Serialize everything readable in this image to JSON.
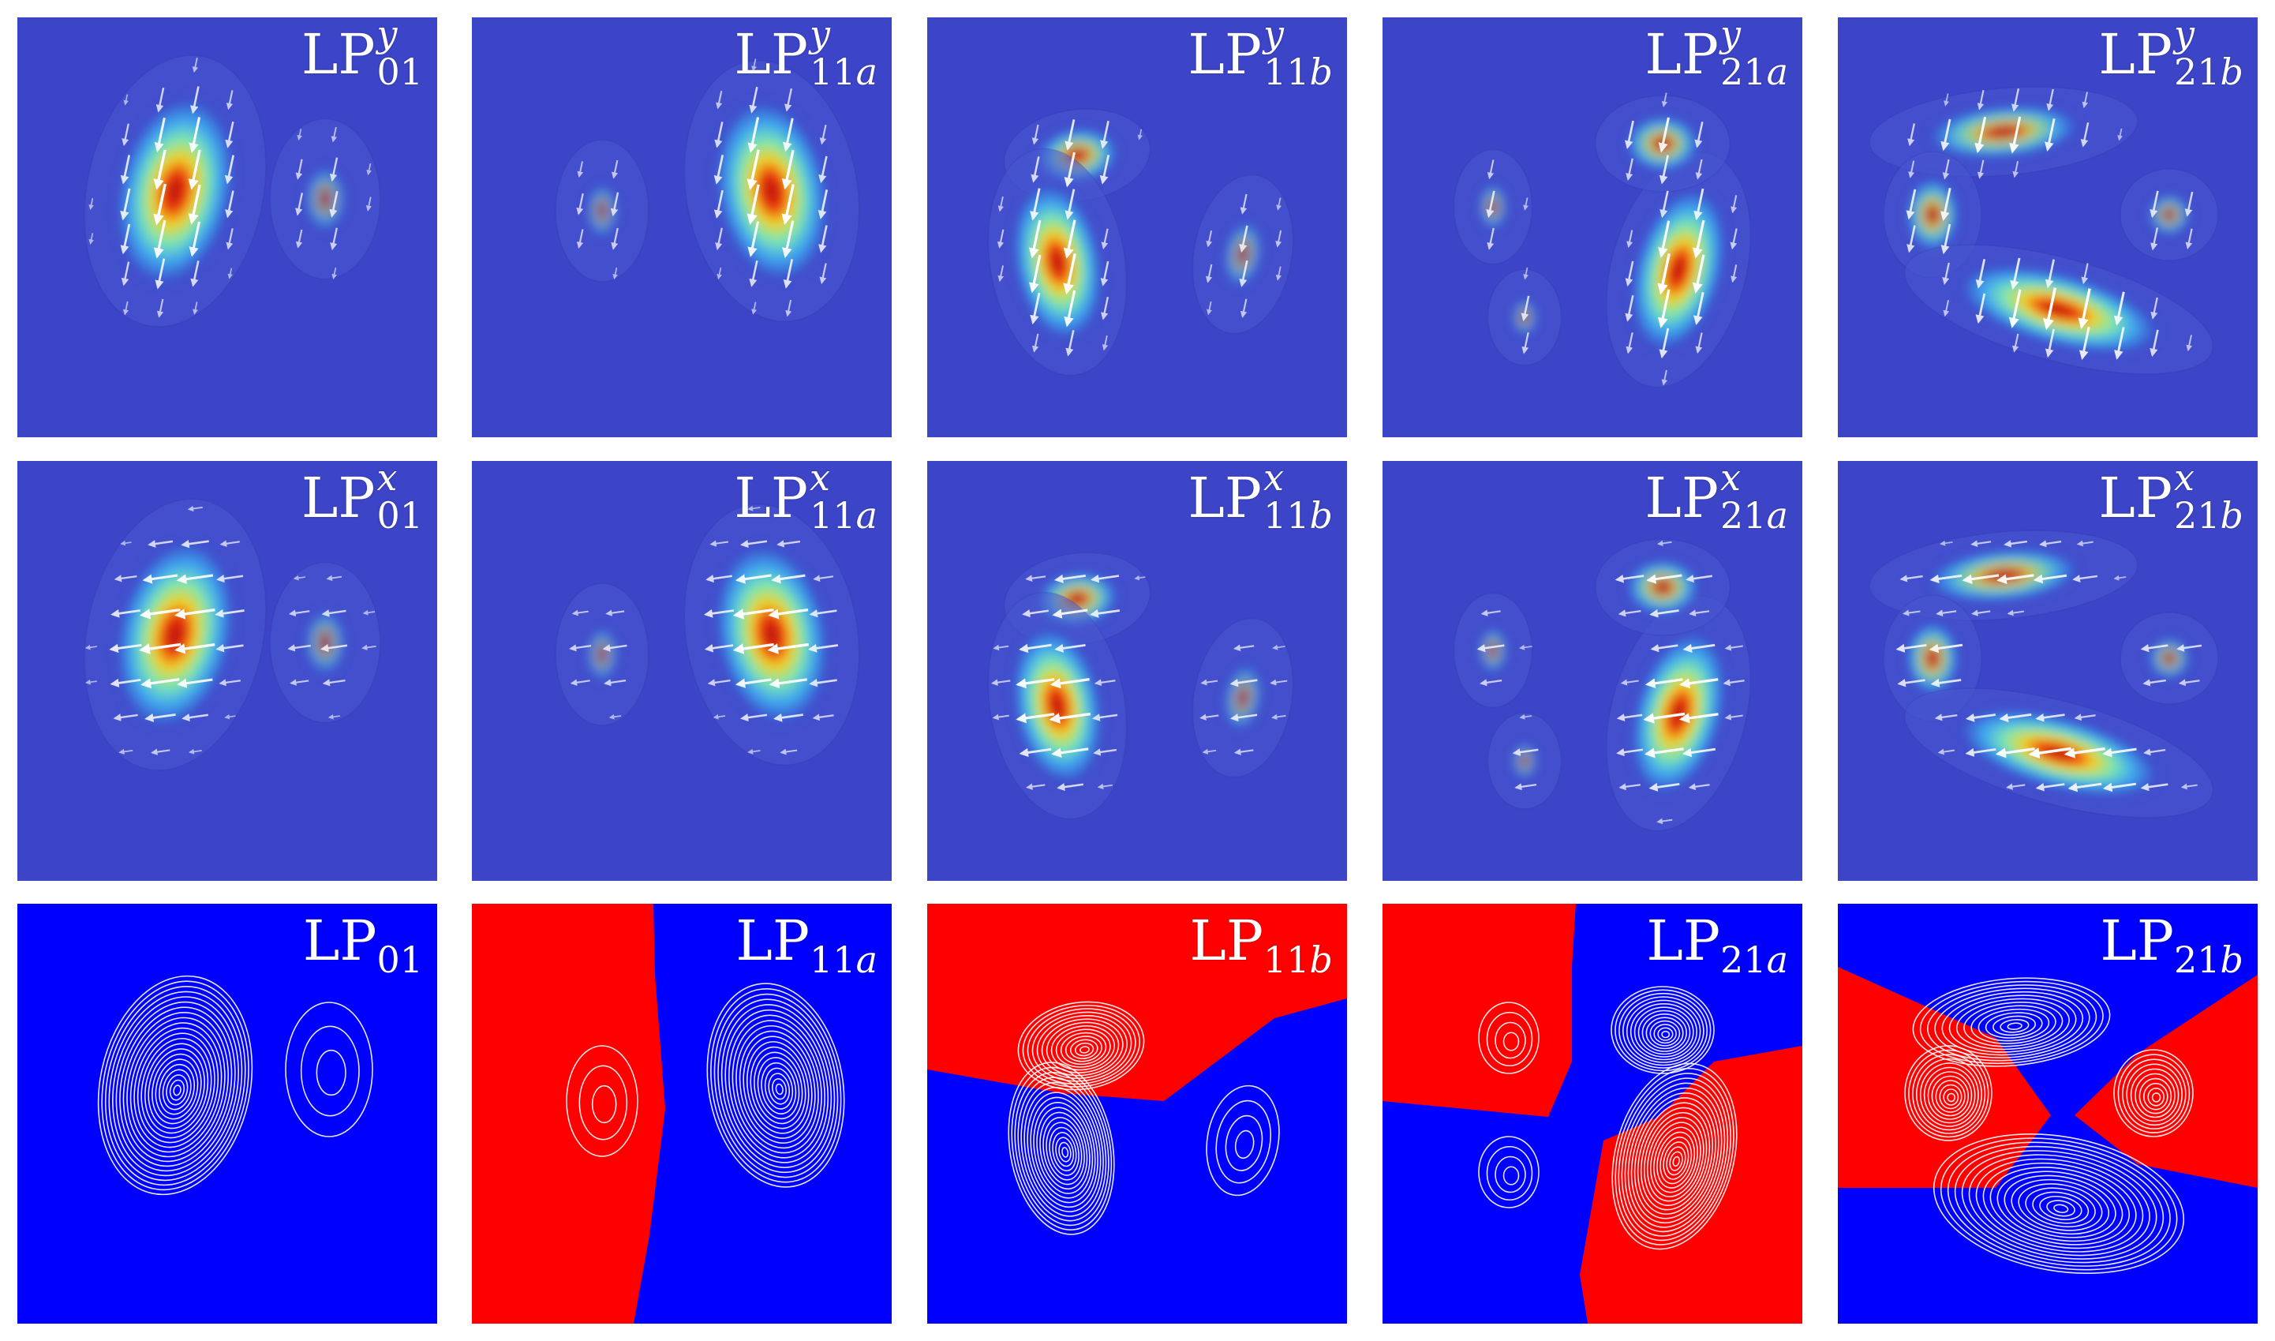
{
  "figure": {
    "rows": [
      {
        "kind": "intensity",
        "polarization": "y",
        "panels": [
          {
            "id": "r1c1",
            "base": "LP",
            "sub_num": "01",
            "sub_letter": "",
            "sup": "y"
          },
          {
            "id": "r1c2",
            "base": "LP",
            "sub_num": "11",
            "sub_letter": "a",
            "sup": "y"
          },
          {
            "id": "r1c3",
            "base": "LP",
            "sub_num": "11",
            "sub_letter": "b",
            "sup": "y"
          },
          {
            "id": "r1c4",
            "base": "LP",
            "sub_num": "21",
            "sub_letter": "a",
            "sup": "y"
          },
          {
            "id": "r1c5",
            "base": "LP",
            "sub_num": "21",
            "sub_letter": "b",
            "sup": "y"
          }
        ]
      },
      {
        "kind": "intensity",
        "polarization": "x",
        "panels": [
          {
            "id": "r2c1",
            "base": "LP",
            "sub_num": "01",
            "sub_letter": "",
            "sup": "x"
          },
          {
            "id": "r2c2",
            "base": "LP",
            "sub_num": "11",
            "sub_letter": "a",
            "sup": "x"
          },
          {
            "id": "r2c3",
            "base": "LP",
            "sub_num": "11",
            "sub_letter": "b",
            "sup": "x"
          },
          {
            "id": "r2c4",
            "base": "LP",
            "sub_num": "21",
            "sub_letter": "a",
            "sup": "x"
          },
          {
            "id": "r2c5",
            "base": "LP",
            "sub_num": "21",
            "sub_letter": "b",
            "sup": "x"
          }
        ]
      },
      {
        "kind": "phase",
        "polarization": "",
        "panels": [
          {
            "id": "r3c1",
            "base": "LP",
            "sub_num": "01",
            "sub_letter": "",
            "sup": ""
          },
          {
            "id": "r3c2",
            "base": "LP",
            "sub_num": "11",
            "sub_letter": "a",
            "sup": ""
          },
          {
            "id": "r3c3",
            "base": "LP",
            "sub_num": "11",
            "sub_letter": "b",
            "sup": ""
          },
          {
            "id": "r3c4",
            "base": "LP",
            "sub_num": "21",
            "sub_letter": "a",
            "sup": ""
          },
          {
            "id": "r3c5",
            "base": "LP",
            "sub_num": "21",
            "sub_letter": "b",
            "sup": ""
          }
        ]
      }
    ],
    "colors": {
      "field_background": "#3c44c8",
      "phase_positive": "#ff0000",
      "phase_negative": "#0000ff",
      "contour": "#ffffff",
      "arrow": "#ffffff"
    }
  }
}
